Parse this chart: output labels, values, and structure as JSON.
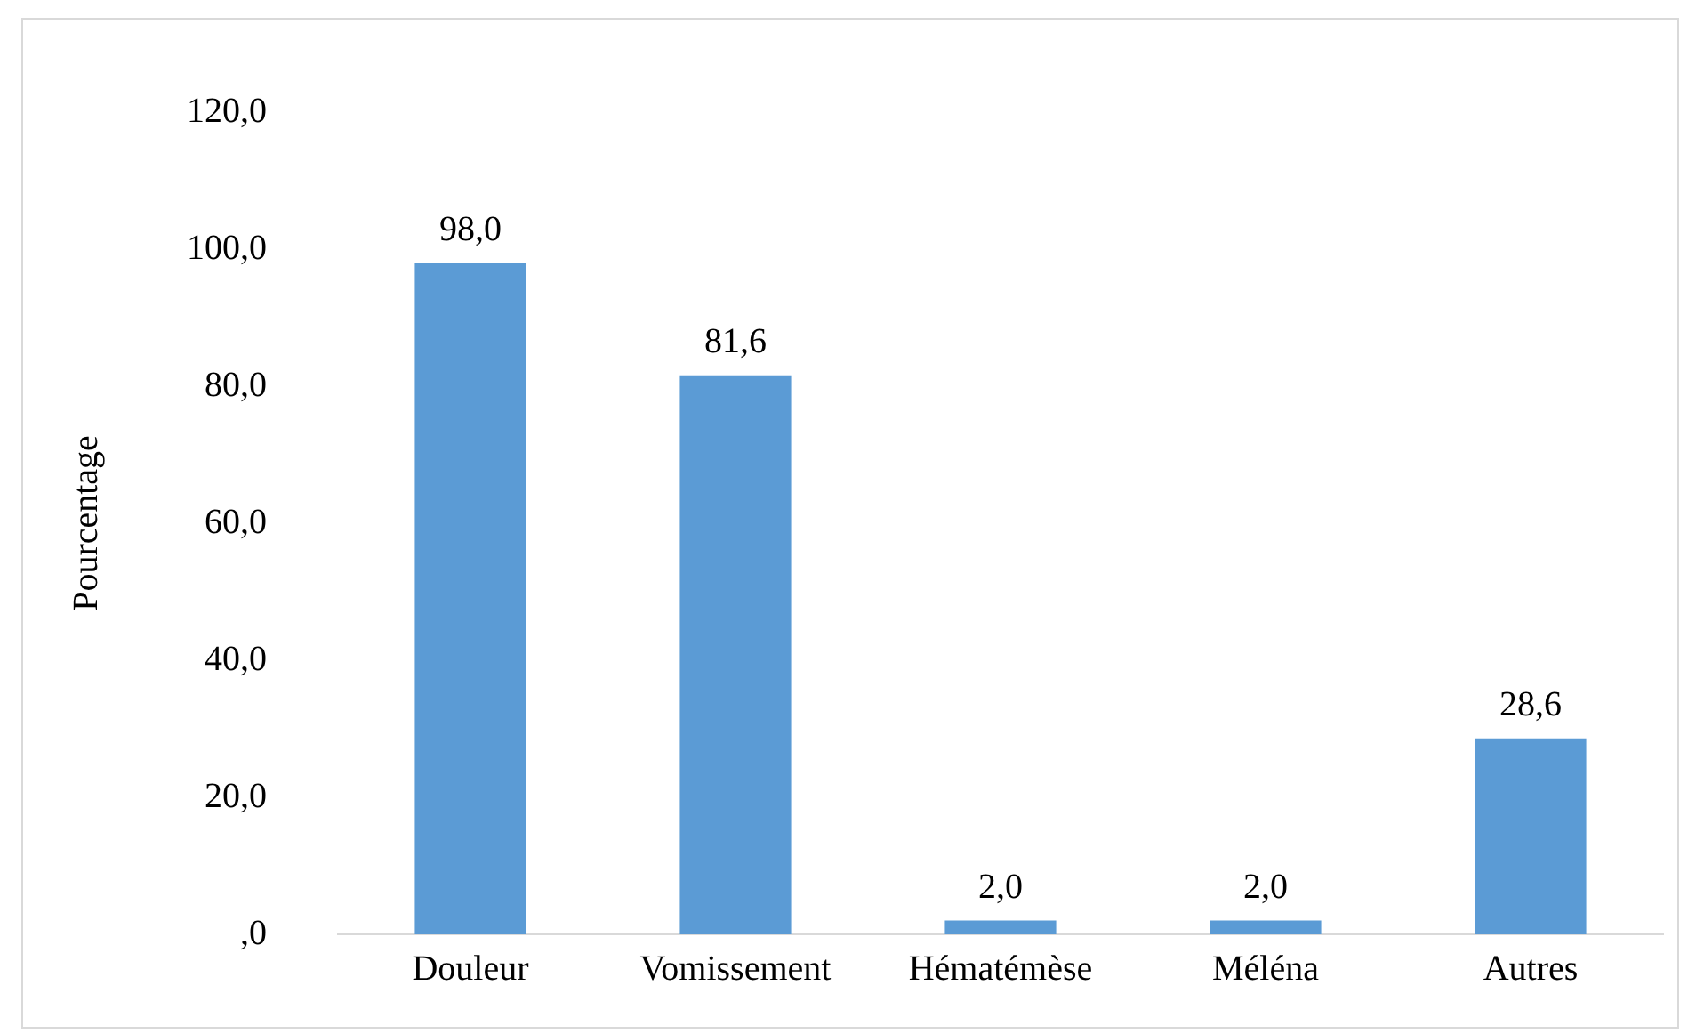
{
  "chart_data": {
    "type": "bar",
    "ylabel": "Pourcentage",
    "categories": [
      "Douleur",
      "Vomissement",
      "Hématémèse",
      "Méléna",
      "Autres"
    ],
    "values": [
      98.0,
      81.6,
      2.0,
      2.0,
      28.6
    ],
    "value_labels": [
      "98,0",
      "81,6",
      "2,0",
      "2,0",
      "28,6"
    ],
    "color": "#5b9bd5",
    "ylim": [
      0,
      120
    ],
    "yticks": [
      {
        "value": 0,
        "label": ",0"
      },
      {
        "value": 20,
        "label": "20,0"
      },
      {
        "value": 40,
        "label": "40,0"
      },
      {
        "value": 60,
        "label": "60,0"
      },
      {
        "value": 80,
        "label": "80,0"
      },
      {
        "value": 100,
        "label": "100,0"
      },
      {
        "value": 120,
        "label": "120,0"
      }
    ],
    "grid": false,
    "legend": false
  }
}
